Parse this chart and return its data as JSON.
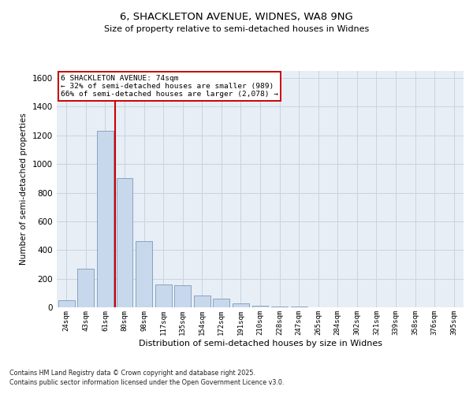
{
  "title1": "6, SHACKLETON AVENUE, WIDNES, WA8 9NG",
  "title2": "Size of property relative to semi-detached houses in Widnes",
  "xlabel": "Distribution of semi-detached houses by size in Widnes",
  "ylabel": "Number of semi-detached properties",
  "categories": [
    "24sqm",
    "43sqm",
    "61sqm",
    "80sqm",
    "98sqm",
    "117sqm",
    "135sqm",
    "154sqm",
    "172sqm",
    "191sqm",
    "210sqm",
    "228sqm",
    "247sqm",
    "265sqm",
    "284sqm",
    "302sqm",
    "321sqm",
    "339sqm",
    "358sqm",
    "376sqm",
    "395sqm"
  ],
  "values": [
    50,
    270,
    1230,
    900,
    460,
    160,
    155,
    80,
    60,
    30,
    10,
    5,
    3,
    2,
    1,
    1,
    0,
    0,
    0,
    0,
    0
  ],
  "bar_color": "#c8d8ec",
  "bar_edge_color": "#7a9ab8",
  "vline_color": "#cc0000",
  "annotation_text": "6 SHACKLETON AVENUE: 74sqm\n← 32% of semi-detached houses are smaller (989)\n66% of semi-detached houses are larger (2,078) →",
  "annotation_box_facecolor": "#ffffff",
  "annotation_box_edgecolor": "#cc0000",
  "ylim": [
    0,
    1650
  ],
  "yticks": [
    0,
    200,
    400,
    600,
    800,
    1000,
    1200,
    1400,
    1600
  ],
  "grid_color": "#c8d4e0",
  "bg_color": "#e8eef5",
  "footer1": "Contains HM Land Registry data © Crown copyright and database right 2025.",
  "footer2": "Contains public sector information licensed under the Open Government Licence v3.0."
}
